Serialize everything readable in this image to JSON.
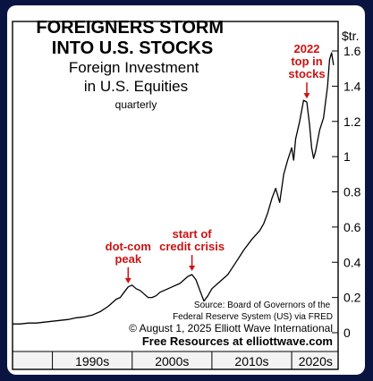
{
  "chart_data": {
    "type": "line",
    "title": "FOREIGNERS STORM\nINTO U.S. STOCKS",
    "subtitle": "Foreign Investment\nin U.S. Equities",
    "frequency_note": "quarterly",
    "y_unit_label": "$tr.",
    "ylim": [
      0,
      1.65
    ],
    "y_ticks": [
      "0",
      "0.2",
      "0.4",
      "0.6",
      "0.8",
      "1",
      "1.2",
      "1.4",
      "1.6"
    ],
    "y_tick_values": [
      0,
      0.2,
      0.4,
      0.6,
      0.8,
      1.0,
      1.2,
      1.4,
      1.6
    ],
    "xlim": [
      1985.0,
      2025.6
    ],
    "x_tick_labels": [
      "1990s",
      "2000s",
      "2010s",
      "2020s"
    ],
    "x_tick_label_centers": [
      1995,
      2005,
      2015,
      2023
    ],
    "x_separators": [
      1990,
      2000,
      2010,
      2020
    ],
    "line_color": "#000000",
    "grid": false,
    "series": [
      {
        "x": [
          1985.0,
          1986.0,
          1987.0,
          1988.0,
          1989.0,
          1990.0,
          1991.0,
          1992.0,
          1993.0,
          1994.0,
          1995.0,
          1996.0,
          1997.0,
          1997.5,
          1998.0,
          1998.5,
          1999.0,
          1999.5,
          2000.0,
          2000.5,
          2001.0,
          2001.5,
          2002.0,
          2002.5,
          2003.0,
          2003.5,
          2004.0,
          2005.0,
          2006.0,
          2006.5,
          2007.0,
          2007.5,
          2008.0,
          2008.5,
          2009.0,
          2009.5,
          2010.0,
          2011.0,
          2012.0,
          2013.0,
          2014.0,
          2015.0,
          2016.0,
          2016.5,
          2017.0,
          2017.5,
          2018.0,
          2018.5,
          2019.0,
          2019.5,
          2020.0,
          2020.25,
          2020.5,
          2021.0,
          2021.5,
          2021.9,
          2022.25,
          2022.5,
          2022.75,
          2023.0,
          2023.5,
          2024.0,
          2024.5,
          2024.75,
          2025.0,
          2025.25
        ],
        "values": [
          0.05,
          0.05,
          0.055,
          0.055,
          0.06,
          0.065,
          0.07,
          0.075,
          0.085,
          0.09,
          0.1,
          0.12,
          0.15,
          0.17,
          0.19,
          0.2,
          0.23,
          0.26,
          0.27,
          0.25,
          0.24,
          0.22,
          0.2,
          0.2,
          0.21,
          0.23,
          0.24,
          0.26,
          0.28,
          0.3,
          0.32,
          0.33,
          0.3,
          0.24,
          0.18,
          0.21,
          0.25,
          0.29,
          0.33,
          0.4,
          0.47,
          0.53,
          0.58,
          0.62,
          0.68,
          0.76,
          0.82,
          0.74,
          0.9,
          0.98,
          1.05,
          0.98,
          1.1,
          1.2,
          1.32,
          1.31,
          1.18,
          1.05,
          0.99,
          1.03,
          1.15,
          1.22,
          1.4,
          1.55,
          1.59,
          1.52
        ]
      }
    ],
    "annotations": [
      {
        "text": "dot-com\npeak",
        "x": 1999.5,
        "y": 0.26
      },
      {
        "text": "start of\ncredit crisis",
        "x": 2007.5,
        "y": 0.33
      },
      {
        "text": "2022\ntop in\nstocks",
        "x": 2021.9,
        "y": 1.31
      }
    ]
  },
  "source_text": "Source: Board of Governors of the\nFederal Reserve System (US) via FRED",
  "copyright_text": "© August 1, 2025  Elliott Wave International",
  "footer_link": "Free Resources at elliottwave.com"
}
